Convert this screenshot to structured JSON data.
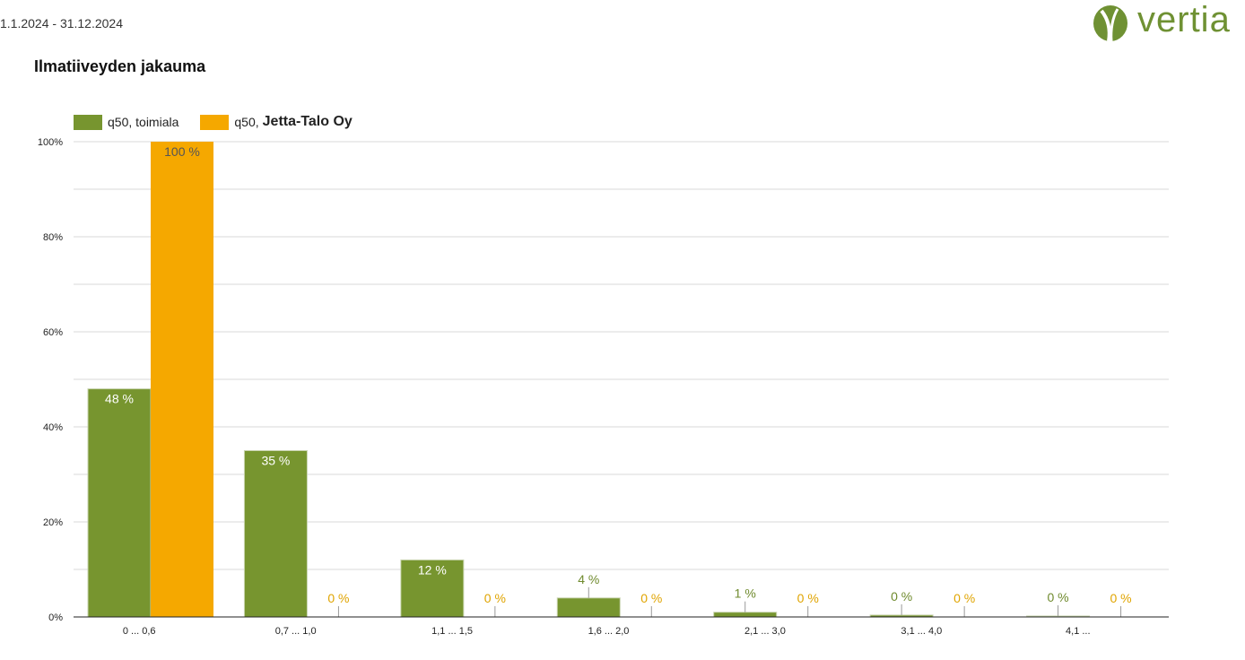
{
  "header": {
    "date_range": "1.1.2024 - 31.12.2024",
    "logo_text": "vertia"
  },
  "chart_data": {
    "type": "bar",
    "title": "Ilmatiiveyden jakauma",
    "categories": [
      "0 ... 0,6",
      "0,7 ... 1,0",
      "1,1 ... 1,5",
      "1,6 ... 2,0",
      "2,1 ... 3,0",
      "3,1 ... 4,0",
      "4,1 ..."
    ],
    "series": [
      {
        "name": "q50, toimiala",
        "color": "#77952f",
        "values": [
          48,
          35,
          12,
          4,
          1,
          0.4,
          0.2
        ],
        "labels": [
          "48 %",
          "35 %",
          "12 %",
          "4 %",
          "1 %",
          "0 %",
          "0 %"
        ]
      },
      {
        "name": "q50,",
        "name_company": "Jetta-Talo Oy",
        "color": "#f5a800",
        "values": [
          100,
          0,
          0,
          0,
          0,
          0,
          0
        ],
        "labels": [
          "100 %",
          "0 %",
          "0 %",
          "0 %",
          "0 %",
          "0 %",
          "0 %"
        ]
      }
    ],
    "y_ticks": [
      "0%",
      "20%",
      "40%",
      "60%",
      "80%",
      "100%"
    ],
    "ylim": [
      0,
      100
    ],
    "grid": true,
    "legend_position": "top-left"
  }
}
